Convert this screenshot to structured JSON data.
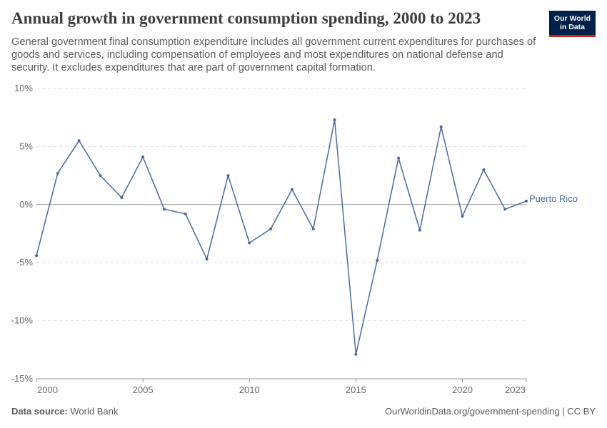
{
  "header": {
    "title": "Annual growth in government consumption spending, 2000 to 2023",
    "subtitle": "General government final consumption expenditure includes all government current expenditures for purchases of goods and services, including compensation of employees and most expenditures on national defense and security. It excludes expenditures that are part of government capital formation.",
    "logo_line1": "Our World",
    "logo_line2": "in Data"
  },
  "footer": {
    "source_label": "Data source:",
    "source_value": "World Bank",
    "link": "OurWorldinData.org/government-spending | CC BY"
  },
  "colors": {
    "series": "#4c6a9c",
    "logo_bg": "#002147",
    "logo_accent": "#ce261e"
  },
  "chart_data": {
    "type": "line",
    "title": "Annual growth in government consumption spending, 2000 to 2023",
    "xlabel": "",
    "ylabel": "",
    "xlim": [
      2000,
      2023
    ],
    "ylim": [
      -15,
      10
    ],
    "x_ticks": [
      2000,
      2005,
      2010,
      2015,
      2020,
      2023
    ],
    "y_ticks": [
      -15,
      -10,
      -5,
      0,
      5,
      10
    ],
    "y_tick_labels": [
      "-15%",
      "-10%",
      "-5%",
      "0%",
      "5%",
      "10%"
    ],
    "grid": "horizontal dashed",
    "legend": "inline label at line end",
    "series": [
      {
        "name": "Puerto Rico",
        "x": [
          2000,
          2001,
          2002,
          2003,
          2004,
          2005,
          2006,
          2007,
          2008,
          2009,
          2010,
          2011,
          2012,
          2013,
          2014,
          2015,
          2016,
          2017,
          2018,
          2019,
          2020,
          2021,
          2022,
          2023
        ],
        "values": [
          -4.4,
          2.7,
          5.5,
          2.5,
          0.6,
          4.1,
          -0.4,
          -0.8,
          -4.7,
          2.5,
          -3.3,
          -2.1,
          1.3,
          -2.1,
          7.3,
          -12.9,
          -4.8,
          4.0,
          -2.2,
          6.7,
          -1.0,
          3.0,
          -0.4,
          0.3
        ]
      }
    ]
  }
}
